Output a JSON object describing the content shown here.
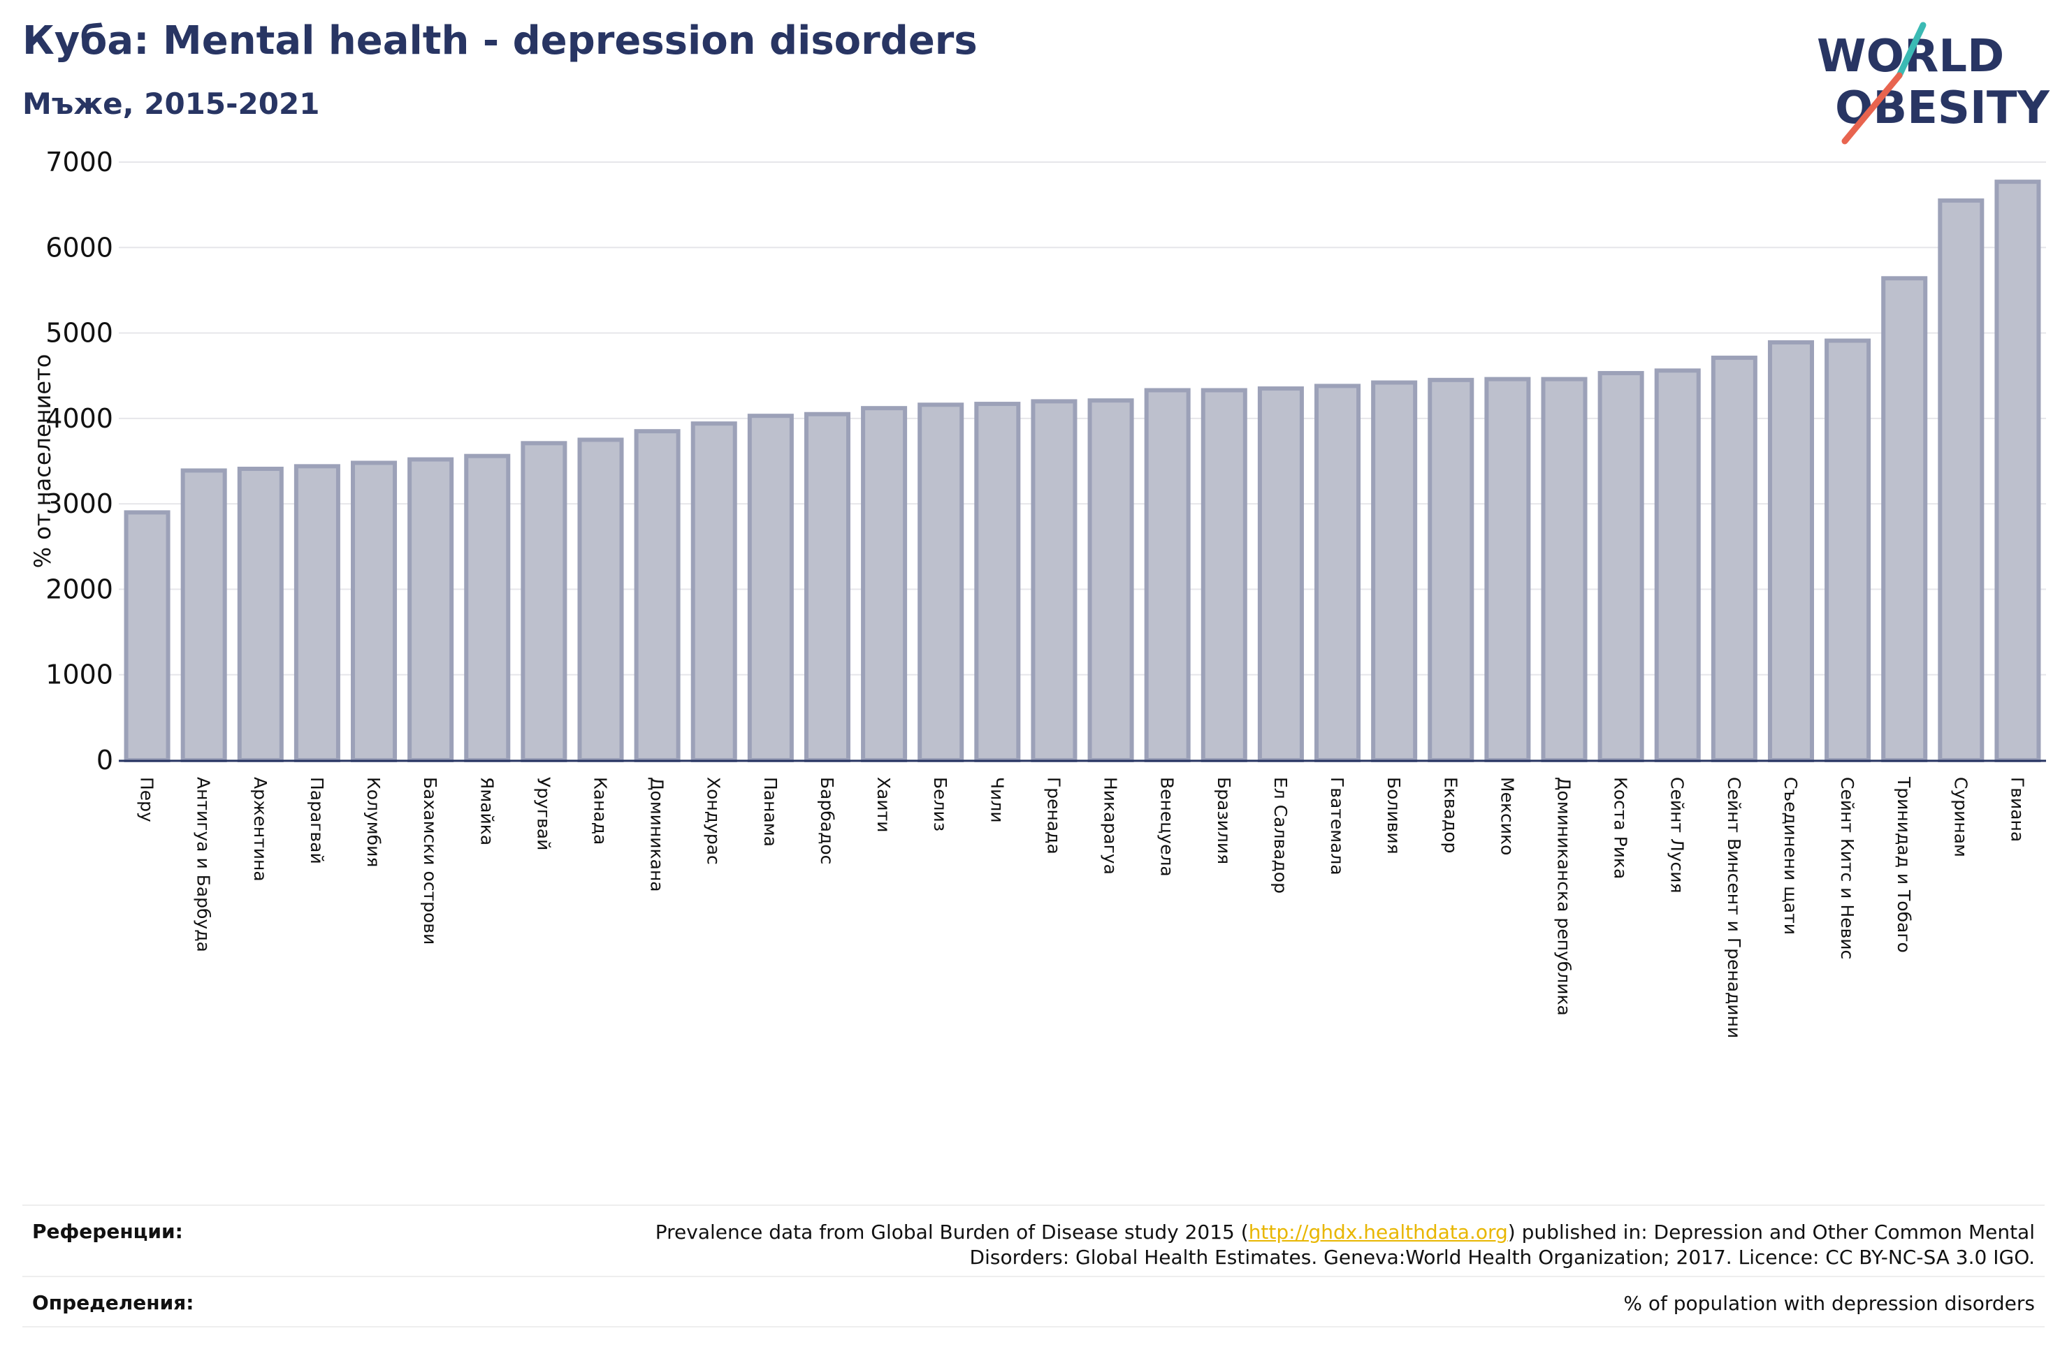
{
  "header": {
    "title": "Куба: Mental health - depression disorders",
    "subtitle": "Мъже, 2015-2021"
  },
  "logo": {
    "line1": "WORLD",
    "line2": "OBESITY",
    "name": "world-obesity-logo"
  },
  "colors": {
    "title": "#283563",
    "bar_fill": "#bdc0cd",
    "bar_stroke": "#9ca1b8",
    "axis": "#283563",
    "grid": "#e6e6ea",
    "link": "#e8b600",
    "logo_teal": "#3bbab4",
    "logo_red": "#e8644f"
  },
  "chart_data": {
    "type": "bar",
    "title": "Куба: Mental health - depression disorders",
    "subtitle": "Мъже, 2015-2021",
    "ylabel": "% от населението",
    "xlabel": "",
    "ylim": [
      0,
      7000
    ],
    "yticks": [
      0,
      1000,
      2000,
      3000,
      4000,
      5000,
      6000,
      7000
    ],
    "grid": true,
    "categories": [
      "Перу",
      "Антигуа и Барбуда",
      "Аржентина",
      "Парагвай",
      "Колумбия",
      "Бахамски острови",
      "Ямайка",
      "Уругвай",
      "Канада",
      "Доминикана",
      "Хондурас",
      "Панама",
      "Барбадос",
      "Хаити",
      "Белиз",
      "Чили",
      "Гренада",
      "Никарагуа",
      "Венецуела",
      "Бразилия",
      "Ел Салвадор",
      "Гватемала",
      "Боливия",
      "Еквадор",
      "Мексико",
      "Доминиканска република",
      "Коста Рика",
      "Сейнт Лусия",
      "Сейнт Винсент и Гренадини",
      "Съединени щати",
      "Сейнт Китс и Невис",
      "Тринидад и Тобаго",
      "Суринам",
      "Гвиана"
    ],
    "values": [
      2900,
      3390,
      3410,
      3440,
      3480,
      3520,
      3560,
      3710,
      3750,
      3850,
      3940,
      4030,
      4050,
      4120,
      4160,
      4170,
      4200,
      4210,
      4330,
      4330,
      4350,
      4380,
      4420,
      4450,
      4460,
      4460,
      4530,
      4560,
      4710,
      4890,
      4910,
      5640,
      6550,
      6770
    ]
  },
  "references": {
    "refs_label": "Референции:",
    "refs_text_before": "Prevalence data from Global Burden of Disease study 2015 (",
    "refs_link": "http://ghdx.healthdata.org",
    "refs_text_after": ") published in: Depression and Other Common Mental",
    "refs_text_line2": "Disorders: Global Health Estimates. Geneva:World Health Organization; 2017. Licence: CC BY-NC-SA 3.0 IGO.",
    "defs_label": "Определения:",
    "defs_text": "% of population with depression disorders"
  }
}
